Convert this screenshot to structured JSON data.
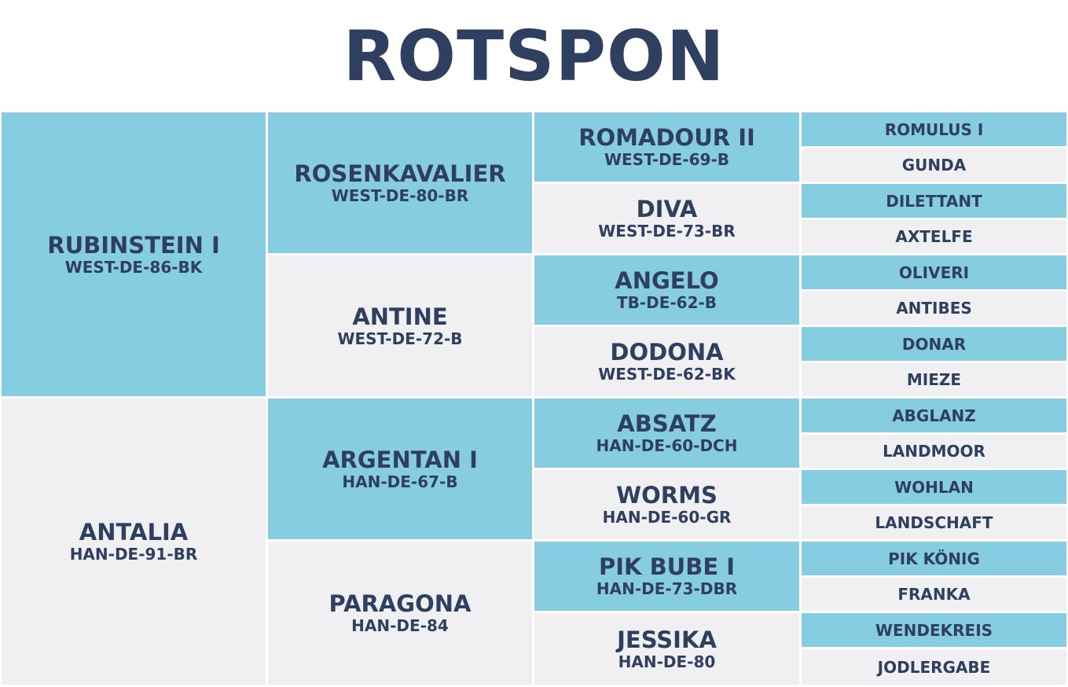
{
  "title": "ROTSPON",
  "gen1": [
    {
      "name": "RUBINSTEIN I",
      "reg": "WEST-DE-86-BK",
      "shade": "blue"
    },
    {
      "name": "ANTALIA",
      "reg": "HAN-DE-91-BR",
      "shade": "grey"
    }
  ],
  "gen2": [
    {
      "name": "ROSENKAVALIER",
      "reg": "WEST-DE-80-BR",
      "shade": "blue"
    },
    {
      "name": "ANTINE",
      "reg": "WEST-DE-72-B",
      "shade": "grey"
    },
    {
      "name": "ARGENTAN I",
      "reg": "HAN-DE-67-B",
      "shade": "blue"
    },
    {
      "name": "PARAGONA",
      "reg": "HAN-DE-84",
      "shade": "grey"
    }
  ],
  "gen3": [
    {
      "name": "ROMADOUR II",
      "reg": "WEST-DE-69-B",
      "shade": "blue"
    },
    {
      "name": "DIVA",
      "reg": "WEST-DE-73-BR",
      "shade": "grey"
    },
    {
      "name": "ANGELO",
      "reg": "TB-DE-62-B",
      "shade": "blue"
    },
    {
      "name": "DODONA",
      "reg": "WEST-DE-62-BK",
      "shade": "grey"
    },
    {
      "name": "ABSATZ",
      "reg": "HAN-DE-60-DCH",
      "shade": "blue"
    },
    {
      "name": "WORMS",
      "reg": "HAN-DE-60-GR",
      "shade": "grey"
    },
    {
      "name": "PIK BUBE I",
      "reg": "HAN-DE-73-DBR",
      "shade": "blue"
    },
    {
      "name": "JESSIKA",
      "reg": "HAN-DE-80",
      "shade": "grey"
    }
  ],
  "gen4": [
    {
      "name": "ROMULUS I",
      "shade": "blue"
    },
    {
      "name": "GUNDA",
      "shade": "grey"
    },
    {
      "name": "DILETTANT",
      "shade": "blue"
    },
    {
      "name": "AXTELFE",
      "shade": "grey"
    },
    {
      "name": "OLIVERI",
      "shade": "blue"
    },
    {
      "name": "ANTIBES",
      "shade": "grey"
    },
    {
      "name": "DONAR",
      "shade": "blue"
    },
    {
      "name": "MIEZE",
      "shade": "grey"
    },
    {
      "name": "ABGLANZ",
      "shade": "blue"
    },
    {
      "name": "LANDMOOR",
      "shade": "grey"
    },
    {
      "name": "WOHLAN",
      "shade": "blue"
    },
    {
      "name": "LANDSCHAFT",
      "shade": "grey"
    },
    {
      "name": "PIK KÖNIG",
      "shade": "blue"
    },
    {
      "name": "FRANKA",
      "shade": "grey"
    },
    {
      "name": "WENDEKREIS",
      "shade": "blue"
    },
    {
      "name": "JODLERGABE",
      "shade": "grey"
    }
  ],
  "colors": {
    "blue": "#86cde2",
    "grey": "#f0f0f2",
    "text": "#2f3f5f"
  }
}
